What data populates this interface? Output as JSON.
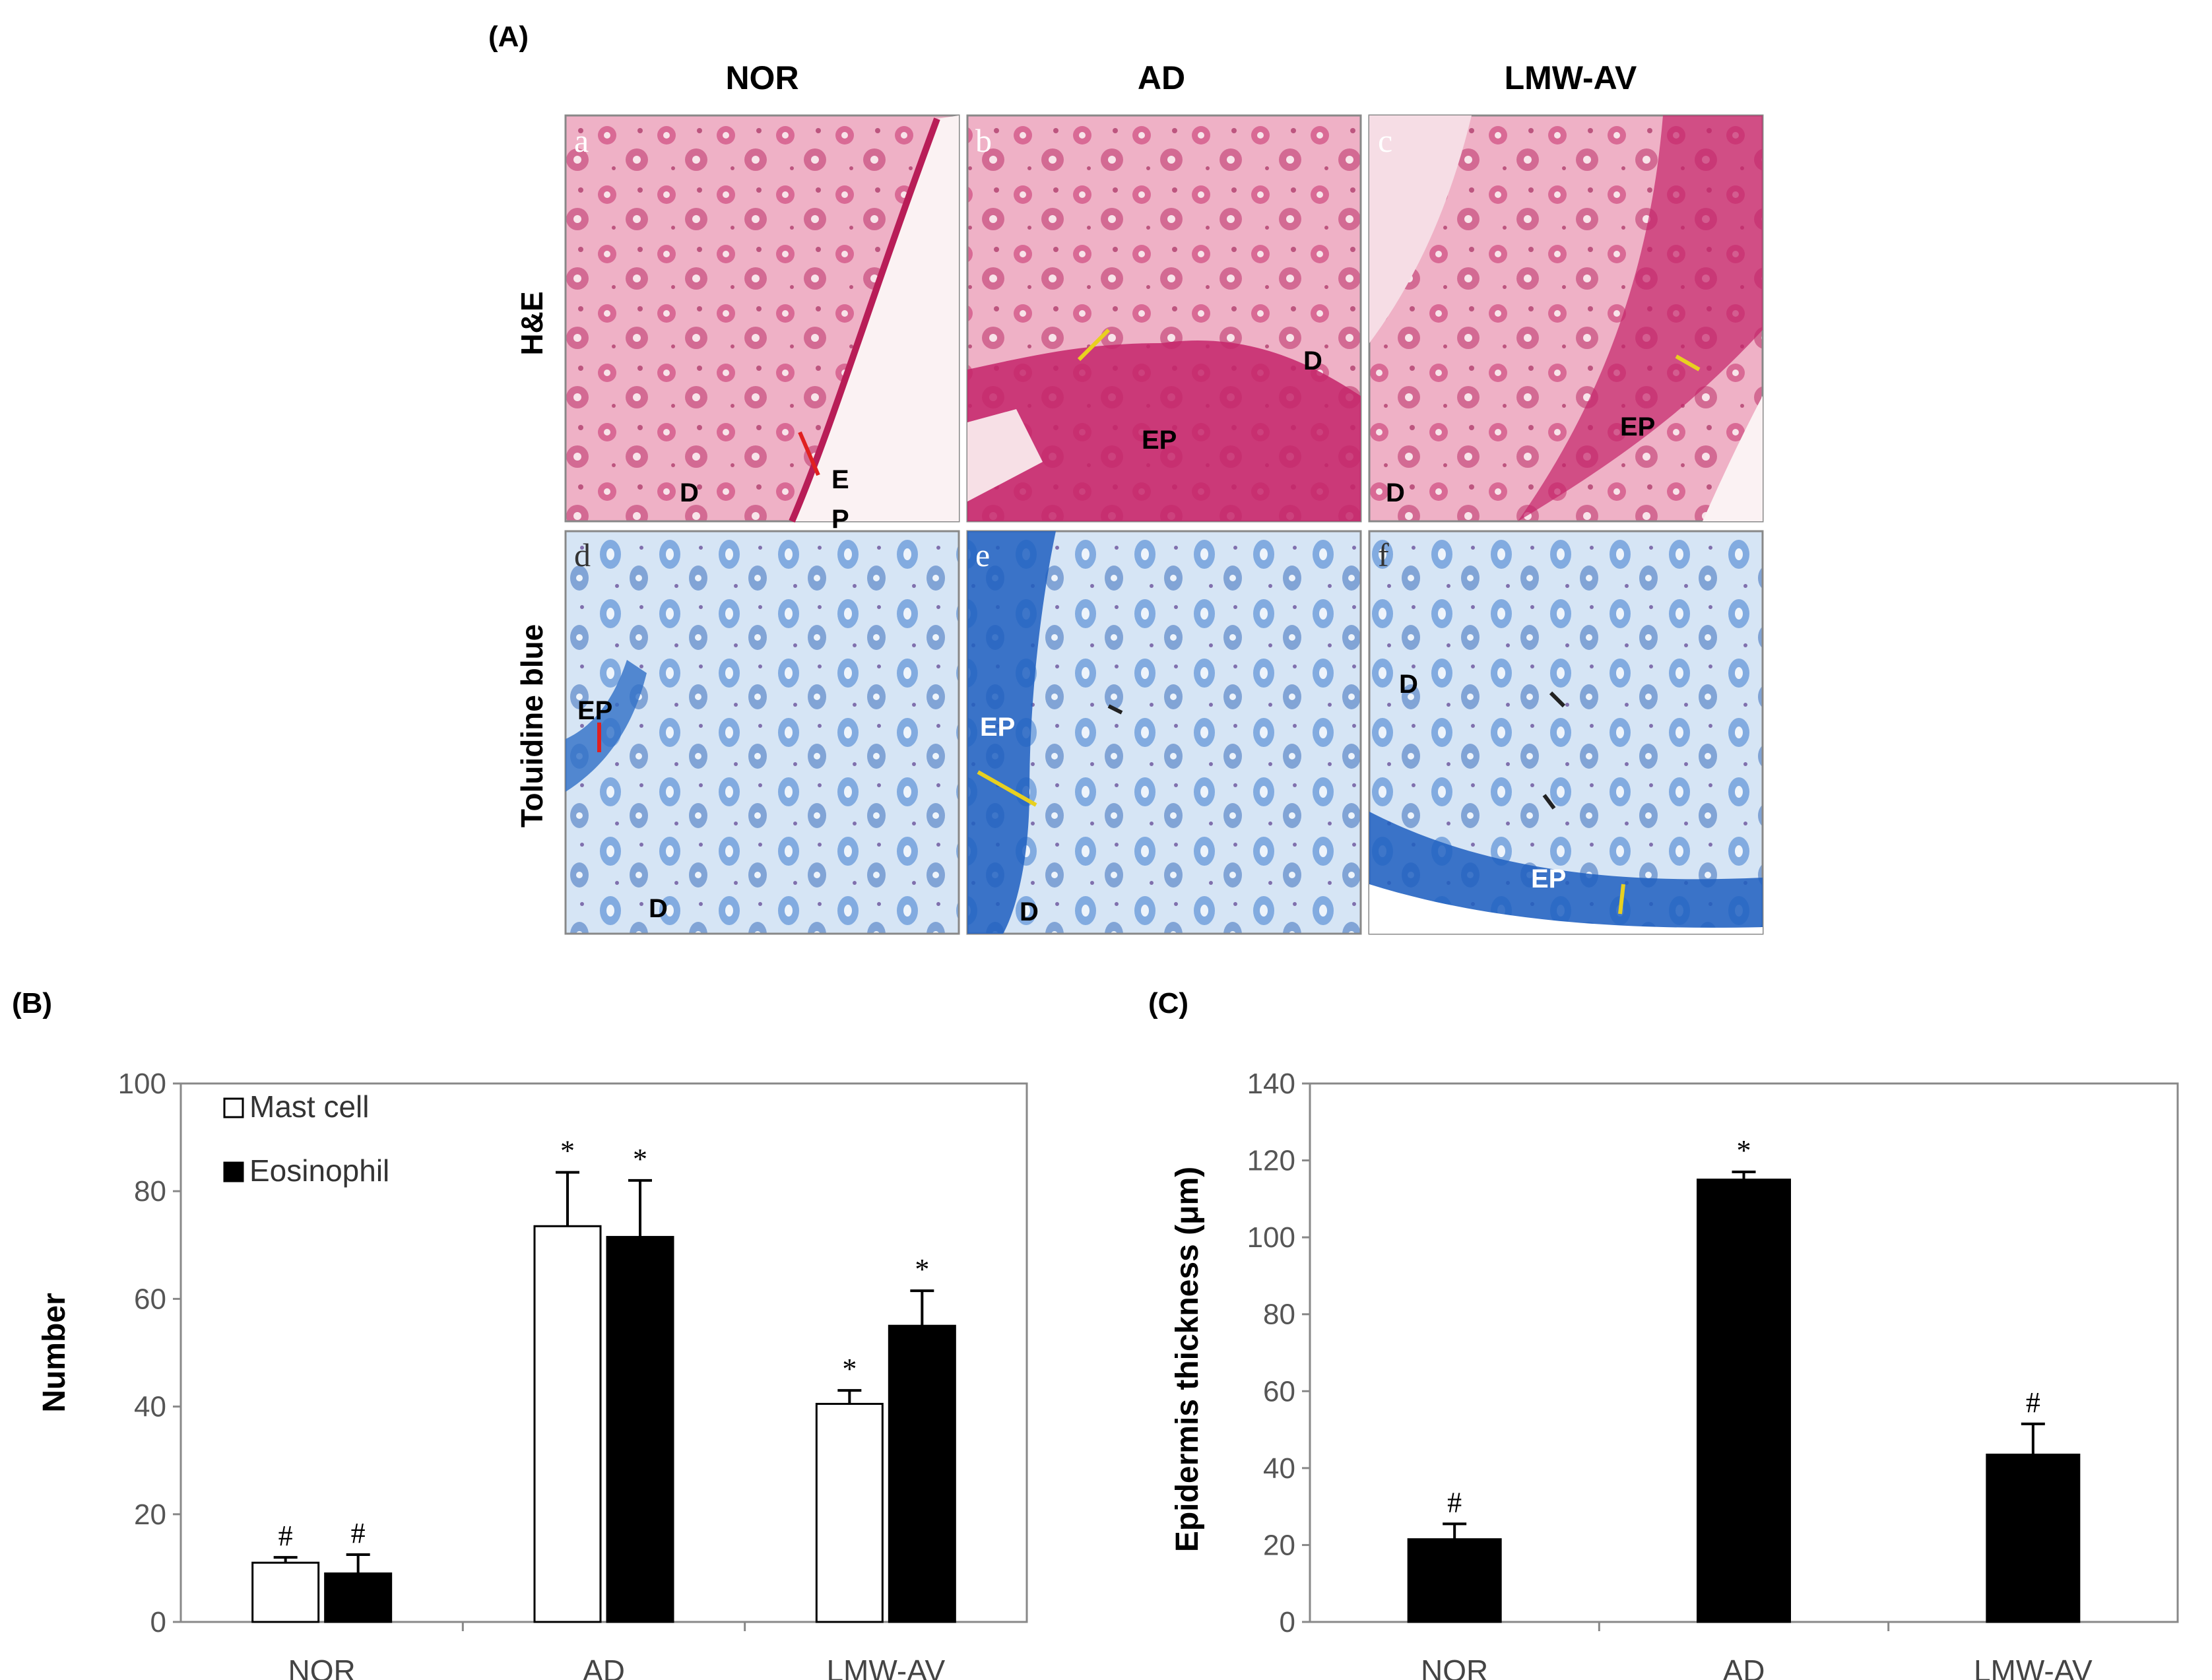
{
  "panel_a": {
    "label": "(A)",
    "columns": [
      "NOR",
      "AD",
      "LMW-AV"
    ],
    "rows": [
      "H&E",
      "Toluidine blue"
    ],
    "subpanel_letters": [
      "a",
      "b",
      "c",
      "d",
      "e",
      "f"
    ],
    "tissue_labels": {
      "a": [
        "D",
        "E",
        "P"
      ],
      "b": [
        "D",
        "EP"
      ],
      "c": [
        "EP",
        "D"
      ],
      "d": [
        "EP",
        "D"
      ],
      "e": [
        "EP",
        "D"
      ],
      "f": [
        "D",
        "EP"
      ]
    },
    "colors": {
      "he_stain": "#d9568f",
      "he_light": "#f3c6d3",
      "tb_stain": "#2f6fc7",
      "tb_light": "#dce8f6"
    }
  },
  "panel_b": {
    "label": "(B)",
    "ylabel": "Number",
    "yticks": [
      "0",
      "20",
      "40",
      "60",
      "80",
      "100"
    ],
    "legend": [
      "Mast cell",
      "Eosinophil"
    ]
  },
  "panel_c": {
    "label": "(C)",
    "ylabel": "Epidermis thickness (μm)",
    "yticks": [
      "0",
      "20",
      "40",
      "60",
      "80",
      "100",
      "120",
      "140"
    ]
  },
  "chart_data": [
    {
      "type": "bar",
      "categories": [
        "NOR",
        "AD",
        "LMW-AV"
      ],
      "ylabel": "Number",
      "ylim": [
        0,
        100
      ],
      "legend_position": "top-left",
      "series": [
        {
          "name": "Mast cell",
          "color": "#ffffff",
          "values": [
            11,
            73.5,
            40.5
          ],
          "errors": [
            1,
            10,
            2.5
          ],
          "annotations": [
            "#",
            "*",
            "*"
          ]
        },
        {
          "name": "Eosinophil",
          "color": "#000000",
          "values": [
            9,
            71.5,
            55
          ],
          "errors": [
            3.5,
            10.5,
            6.5
          ],
          "annotations": [
            "#",
            "*",
            "*"
          ]
        }
      ]
    },
    {
      "type": "bar",
      "categories": [
        "NOR",
        "AD",
        "LMW-AV"
      ],
      "ylabel": "Epidermis thickness (μm)",
      "ylim": [
        0,
        140
      ],
      "series": [
        {
          "color": "#000000",
          "values": [
            21.5,
            115,
            43.5
          ],
          "errors": [
            4,
            2,
            8
          ],
          "annotations": [
            "#",
            "*",
            "#"
          ]
        }
      ]
    }
  ]
}
